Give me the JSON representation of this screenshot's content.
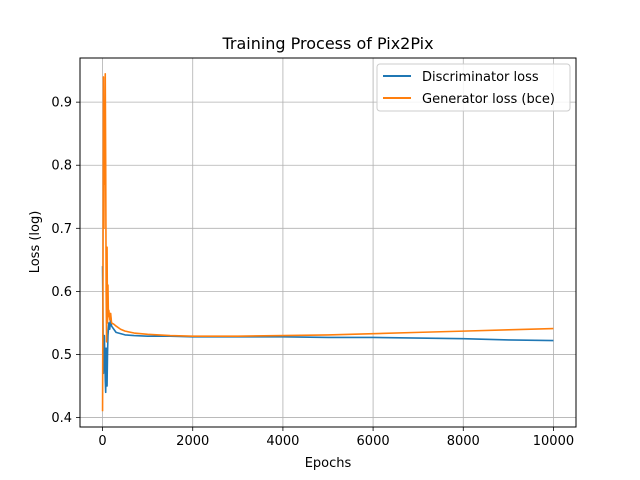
{
  "chart_data": {
    "type": "line",
    "title": "Training Process of Pix2Pix",
    "xlabel": "Epochs",
    "ylabel": "Loss (log)",
    "xlim": [
      -500,
      10500
    ],
    "ylim": [
      0.385,
      0.97
    ],
    "xticks": [
      0,
      2000,
      4000,
      6000,
      8000,
      10000
    ],
    "yticks": [
      0.4,
      0.5,
      0.6,
      0.7,
      0.8,
      0.9
    ],
    "grid": true,
    "legend": {
      "position": "top-right"
    },
    "series": [
      {
        "name": "Discriminator loss",
        "color": "#1f77b4",
        "x": [
          0,
          10,
          20,
          30,
          40,
          50,
          60,
          70,
          80,
          90,
          100,
          110,
          120,
          140,
          160,
          180,
          200,
          250,
          300,
          400,
          500,
          700,
          1000,
          1500,
          2000,
          3000,
          4000,
          5000,
          6000,
          7000,
          8000,
          9000,
          10000
        ],
        "y": [
          0.64,
          0.55,
          0.47,
          0.52,
          0.53,
          0.5,
          0.46,
          0.44,
          0.51,
          0.47,
          0.45,
          0.5,
          0.53,
          0.55,
          0.54,
          0.56,
          0.545,
          0.54,
          0.535,
          0.533,
          0.531,
          0.53,
          0.529,
          0.529,
          0.528,
          0.528,
          0.528,
          0.527,
          0.527,
          0.526,
          0.525,
          0.523,
          0.522
        ]
      },
      {
        "name": "Generator loss (bce)",
        "color": "#ff7f0e",
        "x": [
          0,
          10,
          20,
          30,
          40,
          50,
          60,
          70,
          80,
          90,
          100,
          110,
          120,
          130,
          140,
          160,
          180,
          200,
          250,
          300,
          400,
          500,
          700,
          1000,
          1500,
          2000,
          3000,
          4000,
          5000,
          6000,
          7000,
          8000,
          9000,
          10000
        ],
        "y": [
          0.41,
          0.62,
          0.94,
          0.7,
          0.88,
          0.77,
          0.945,
          0.8,
          0.6,
          0.52,
          0.67,
          0.55,
          0.61,
          0.56,
          0.57,
          0.555,
          0.565,
          0.55,
          0.548,
          0.545,
          0.54,
          0.537,
          0.534,
          0.532,
          0.53,
          0.529,
          0.529,
          0.53,
          0.531,
          0.533,
          0.535,
          0.537,
          0.539,
          0.541
        ]
      }
    ]
  }
}
